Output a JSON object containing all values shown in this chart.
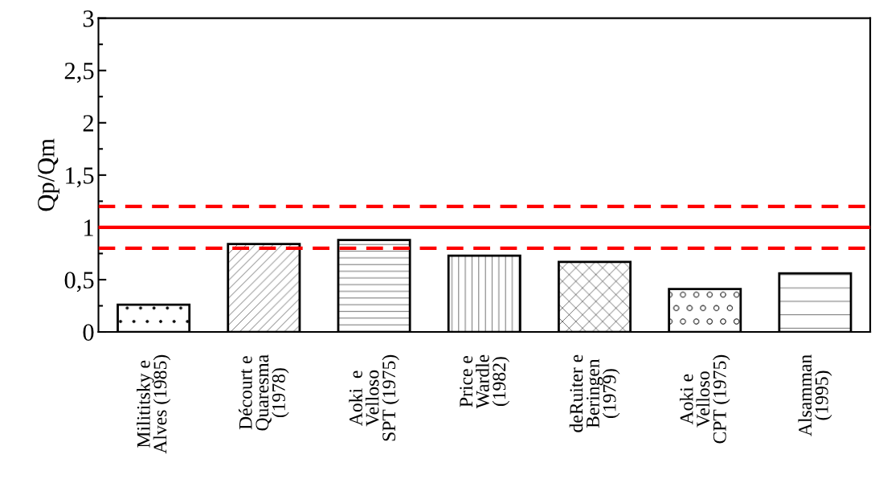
{
  "chart_data": {
    "type": "bar",
    "ylabel": "Qp/Qm",
    "categories": [
      "Milititsky e\nAlves (1985)",
      "Décourt e\nQuaresma\n(1978)",
      "Aoki  e\nVelloso\nSPT (1975)",
      "Price e\nWardle\n(1982)",
      "deRuiter e\nBeringen\n(1979)",
      "Aoki e\nVelloso\nCPT (1975)",
      "Alsamman\n(1995)"
    ],
    "values": [
      0.26,
      0.84,
      0.88,
      0.73,
      0.67,
      0.41,
      0.56
    ],
    "ylim": [
      0,
      3
    ],
    "yticks": [
      0,
      {
        "value": 0.5,
        "label": "0,5"
      },
      1,
      {
        "value": 1.5,
        "label": "1,5"
      },
      2,
      {
        "value": 2.5,
        "label": "2,5"
      },
      3
    ],
    "ref_lines": [
      {
        "axis": "y",
        "value": 1,
        "color": "#ff0000",
        "line_style": "solid"
      },
      {
        "axis": "y",
        "value": 0.8,
        "color": "#ff0000",
        "line_style": "dashed"
      },
      {
        "axis": "y",
        "value": 1.2,
        "color": "#ff0000",
        "line_style": "dashed"
      }
    ],
    "grid": false,
    "legend": false
  }
}
